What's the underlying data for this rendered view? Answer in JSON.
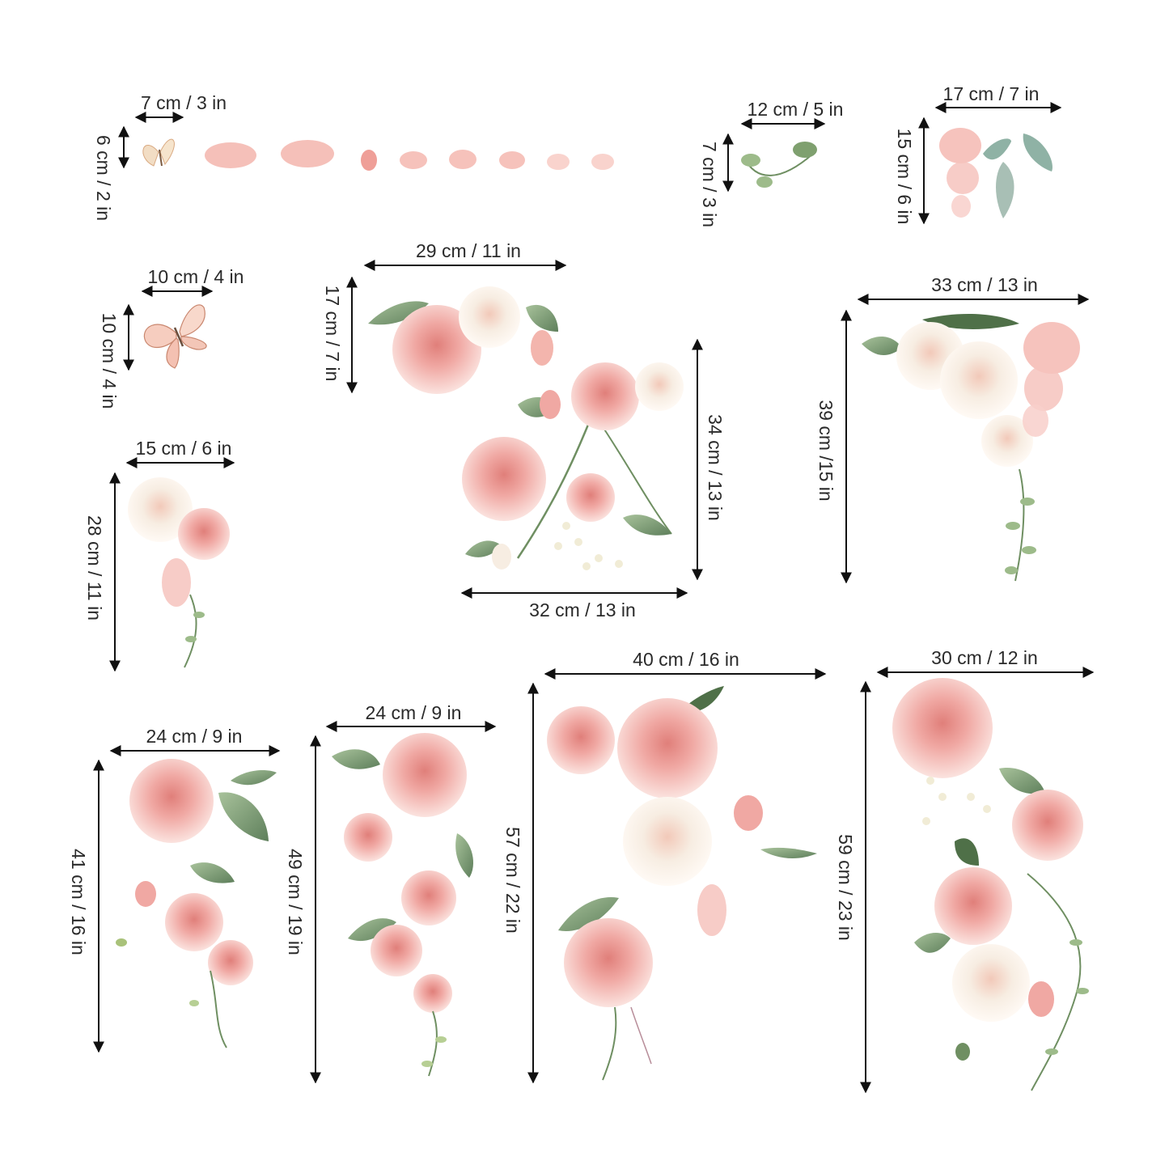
{
  "colors": {
    "petal_light": "#f8d5d0",
    "petal_mid": "#f0a8a3",
    "petal_deep": "#e07f7a",
    "cream": "#f7ede2",
    "leaf": "#8fae86",
    "leaf_dark": "#5e7f5b",
    "arrow": "#111111"
  },
  "items": [
    {
      "id": "petals-butterfly-strip",
      "width_label": "7 cm / 3 in",
      "height_label": "6 cm / 2 in"
    },
    {
      "id": "leaf-sprig",
      "width_label": "12 cm / 5 in",
      "height_label": "7 cm / 3 in"
    },
    {
      "id": "hanging-leaves",
      "width_label": "17 cm / 7 in",
      "height_label": "15 cm / 6 in"
    },
    {
      "id": "butterfly",
      "width_label": "10 cm / 4 in",
      "height_label": "10 cm / 4 in"
    },
    {
      "id": "top-rose-cluster",
      "width_label": "29 cm / 11 in",
      "height_label": "17 cm / 7 in"
    },
    {
      "id": "center-rose-bouquet",
      "width_label": "32 cm / 13 in",
      "height_label": "34 cm / 13 in"
    },
    {
      "id": "corner-peony",
      "width_label": "33 cm / 13 in",
      "height_label": "39 cm /15 in"
    },
    {
      "id": "small-rose-pair",
      "width_label": "15 cm / 6 in",
      "height_label": "28 cm / 11 in"
    },
    {
      "id": "rose-vine-left",
      "width_label": "24 cm / 9 in",
      "height_label": "41 cm / 16 in"
    },
    {
      "id": "rose-vine-mid",
      "width_label": "24 cm / 9 in",
      "height_label": "49 cm / 19 in"
    },
    {
      "id": "large-rose-bouquet",
      "width_label": "40 cm / 16 in",
      "height_label": "57 cm / 22 in"
    },
    {
      "id": "rose-cascade-right",
      "width_label": "30 cm / 12 in",
      "height_label": "59 cm / 23 in"
    }
  ]
}
